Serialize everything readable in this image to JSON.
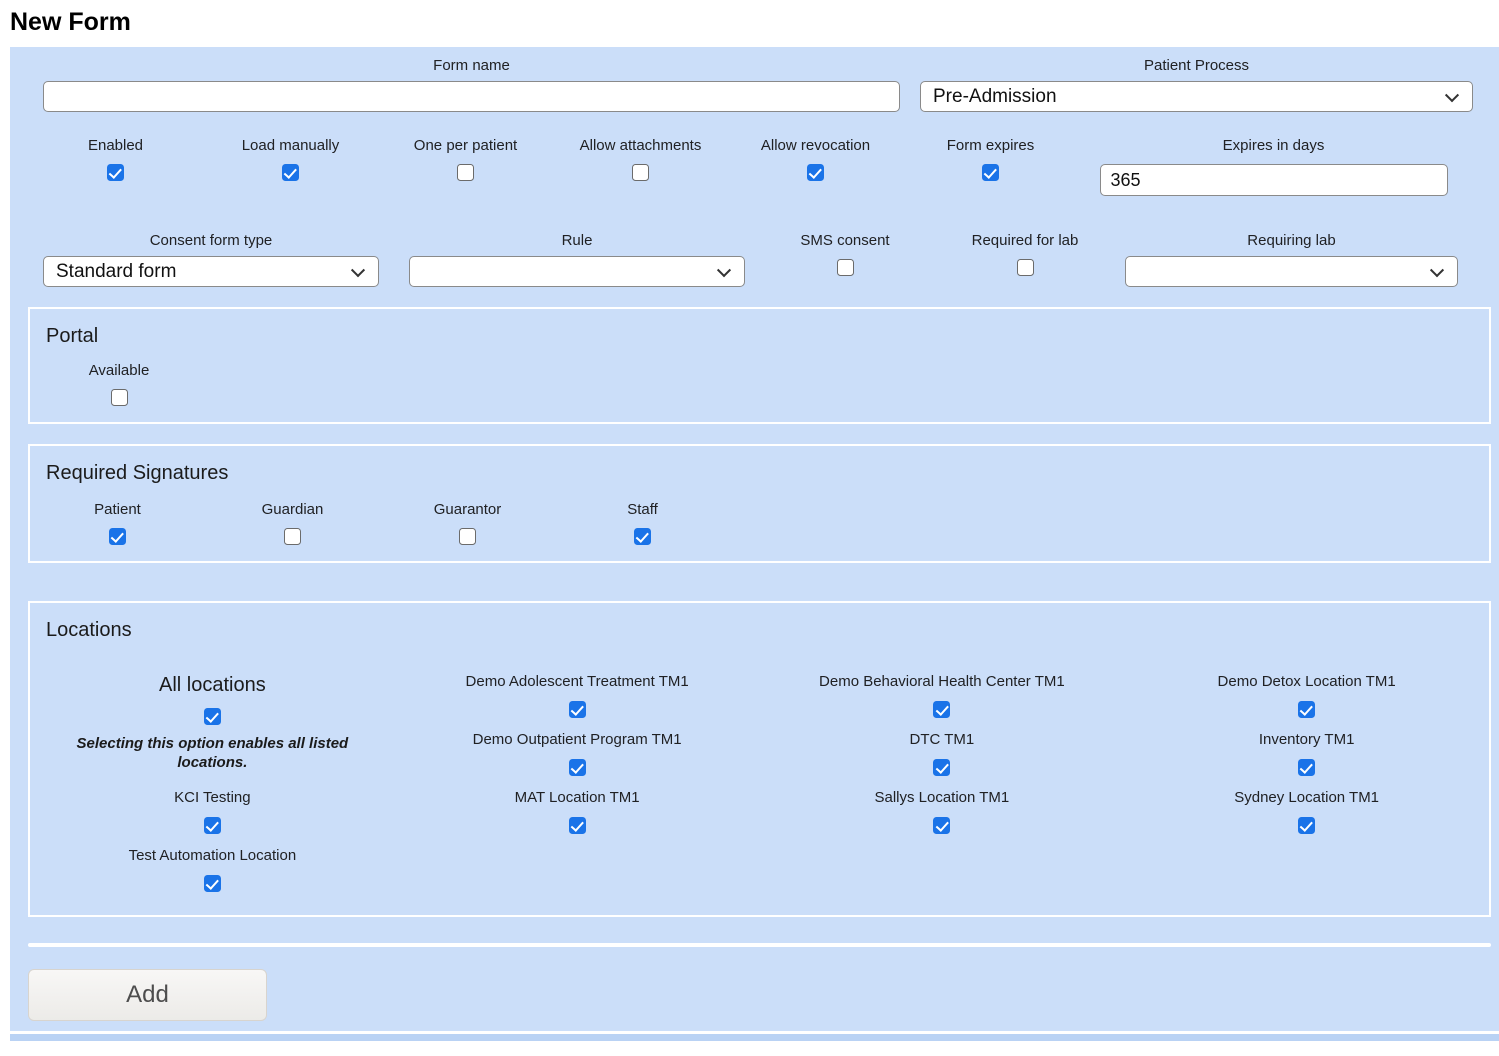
{
  "page": {
    "title": "New Form"
  },
  "colors": {
    "panel_background": "#cbdef9",
    "checkbox_accent": "#1a73e8",
    "section_border": "#ffffff"
  },
  "form": {
    "form_name": {
      "label": "Form name",
      "value": "",
      "placeholder": ""
    },
    "patient_process": {
      "label": "Patient Process",
      "value": "Pre-Admission"
    },
    "options_row": [
      {
        "label": "Enabled",
        "checked": true
      },
      {
        "label": "Load manually",
        "checked": true
      },
      {
        "label": "One per patient",
        "checked": false
      },
      {
        "label": "Allow attachments",
        "checked": false
      },
      {
        "label": "Allow revocation",
        "checked": true
      },
      {
        "label": "Form expires",
        "checked": true
      }
    ],
    "expires_in_days": {
      "label": "Expires in days",
      "value": "365"
    },
    "consent_form_type": {
      "label": "Consent form type",
      "value": "Standard form"
    },
    "rule": {
      "label": "Rule",
      "value": ""
    },
    "sms_consent": {
      "label": "SMS consent",
      "checked": false
    },
    "required_for_lab": {
      "label": "Required for lab",
      "checked": false
    },
    "requiring_lab": {
      "label": "Requiring lab",
      "value": ""
    },
    "portal": {
      "title": "Portal",
      "available": {
        "label": "Available",
        "checked": false
      }
    },
    "required_signatures": {
      "title": "Required Signatures",
      "items": [
        {
          "label": "Patient",
          "checked": true
        },
        {
          "label": "Guardian",
          "checked": false
        },
        {
          "label": "Guarantor",
          "checked": false
        },
        {
          "label": "Staff",
          "checked": true
        }
      ]
    },
    "locations": {
      "title": "Locations",
      "all_locations": {
        "label": "All locations",
        "checked": true,
        "note": "Selecting this option enables all listed locations."
      },
      "items": [
        {
          "label": "Demo Adolescent Treatment TM1",
          "checked": true
        },
        {
          "label": "Demo Behavioral Health Center TM1",
          "checked": true
        },
        {
          "label": "Demo Detox Location TM1",
          "checked": true
        },
        {
          "label": "Demo Outpatient Program TM1",
          "checked": true
        },
        {
          "label": "DTC TM1",
          "checked": true
        },
        {
          "label": "Inventory TM1",
          "checked": true
        },
        {
          "label": "KCI Testing",
          "checked": true
        },
        {
          "label": "MAT Location TM1",
          "checked": true
        },
        {
          "label": "Sallys Location TM1",
          "checked": true
        },
        {
          "label": "Sydney Location TM1",
          "checked": true
        },
        {
          "label": "Test Automation Location",
          "checked": true
        }
      ]
    },
    "add_button_label": "Add"
  }
}
